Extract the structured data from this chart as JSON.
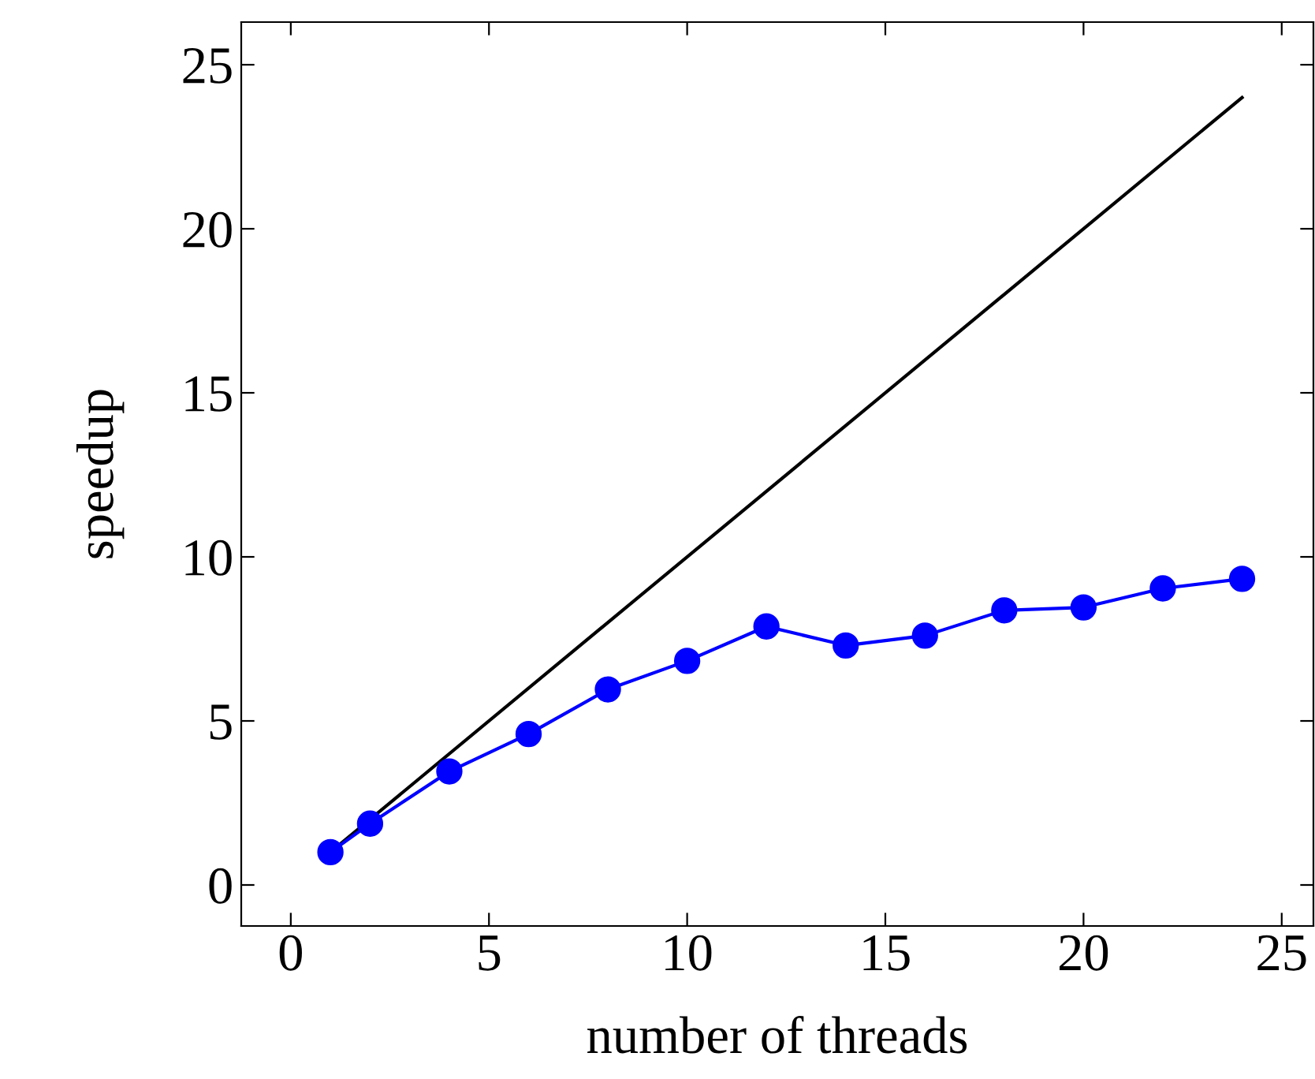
{
  "chart_data": {
    "type": "line",
    "xlabel": "number of threads",
    "ylabel": "speedup",
    "xlim": [
      -1.25,
      25.8
    ],
    "ylim": [
      -1.25,
      26.3
    ],
    "xticks": [
      0,
      5,
      10,
      15,
      20,
      25
    ],
    "yticks": [
      0,
      5,
      10,
      15,
      20,
      25
    ],
    "grid": false,
    "legend": false,
    "series": [
      {
        "color": "#000000",
        "x": [
          1,
          24
        ],
        "values": [
          1,
          24
        ],
        "marker": "none"
      },
      {
        "color": "#0000ff",
        "x": [
          1,
          2,
          4,
          6,
          8,
          10,
          12,
          14,
          16,
          18,
          20,
          22,
          24
        ],
        "values": [
          1.0,
          1.87,
          3.46,
          4.6,
          5.96,
          6.83,
          7.88,
          7.3,
          7.6,
          8.37,
          8.46,
          9.04,
          9.33
        ],
        "marker": "circle"
      }
    ]
  }
}
